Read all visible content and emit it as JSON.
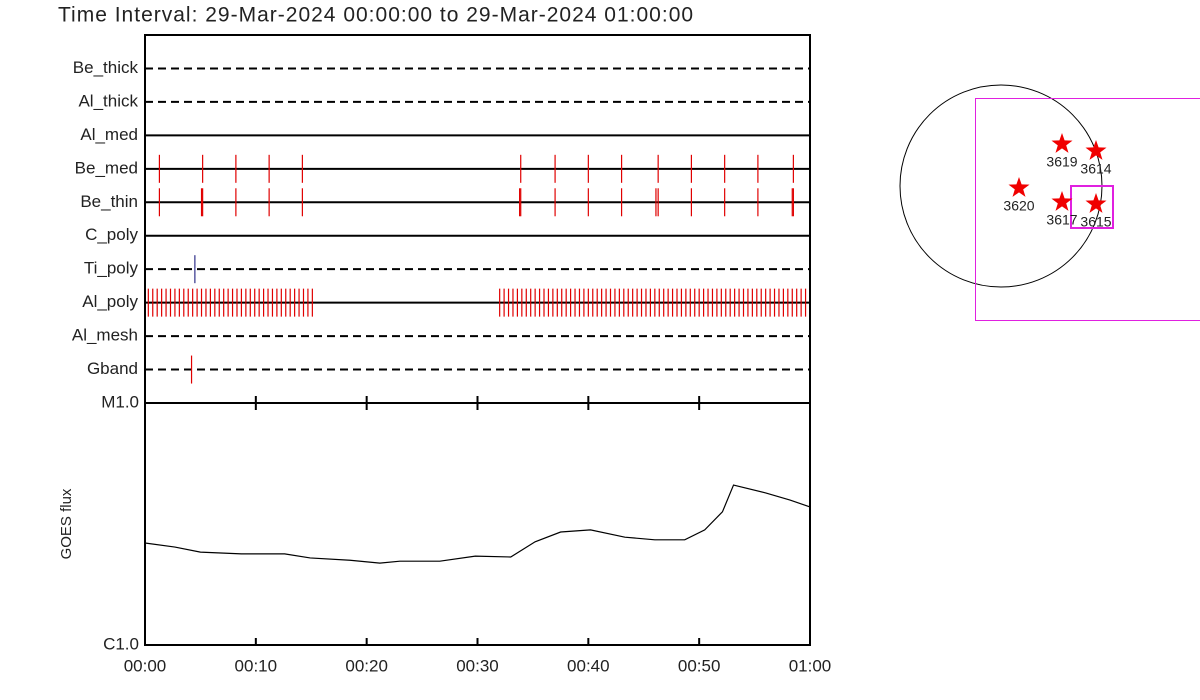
{
  "title": "Time Interval: 29-Mar-2024 00:00:00 to 29-Mar-2024 01:00:00",
  "chart_data": [
    {
      "type": "timeline",
      "xlim": [
        0,
        60
      ],
      "rows": [
        {
          "name": "Be_thick",
          "style": "dashed",
          "color": "#e00000",
          "events": []
        },
        {
          "name": "Al_thick",
          "style": "dashed",
          "color": "#e00000",
          "events": []
        },
        {
          "name": "Al_med",
          "style": "solid",
          "color": "#e00000",
          "events": []
        },
        {
          "name": "Be_med",
          "style": "solid",
          "color": "#e00000",
          "events": [
            1.3,
            5.2,
            8.2,
            11.2,
            14.2,
            33.9,
            37.0,
            40.0,
            43.0,
            46.3,
            49.3,
            52.3,
            55.3,
            58.5
          ]
        },
        {
          "name": "Be_thin",
          "style": "solid",
          "color": "#e00000",
          "events": [
            1.3,
            5.1,
            5.2,
            8.2,
            11.2,
            14.2,
            33.8,
            33.9,
            37.0,
            40.0,
            43.0,
            46.1,
            46.3,
            49.3,
            52.3,
            55.3,
            58.4,
            58.5
          ]
        },
        {
          "name": "C_poly",
          "style": "solid",
          "color": "#e00000",
          "events": []
        },
        {
          "name": "Ti_poly",
          "style": "dashed",
          "color": "#30308a",
          "events": [
            4.5
          ]
        },
        {
          "name": "Al_poly",
          "style": "solid",
          "color": "#e00000",
          "events": [
            0.3,
            0.7,
            1.1,
            1.5,
            1.9,
            2.3,
            2.7,
            3.1,
            3.5,
            3.9,
            4.3,
            4.7,
            5.1,
            5.5,
            5.9,
            6.3,
            6.7,
            7.1,
            7.5,
            7.9,
            8.3,
            8.7,
            9.1,
            9.5,
            9.9,
            10.3,
            10.7,
            11.1,
            11.5,
            11.9,
            12.3,
            12.7,
            13.1,
            13.5,
            13.9,
            14.3,
            14.7,
            15.1,
            32.0,
            32.4,
            32.8,
            33.2,
            33.6,
            34.0,
            34.4,
            34.8,
            35.2,
            35.6,
            36.0,
            36.4,
            36.8,
            37.2,
            37.6,
            38.0,
            38.4,
            38.8,
            39.2,
            39.6,
            40.0,
            40.4,
            40.8,
            41.2,
            41.6,
            42.0,
            42.4,
            42.8,
            43.2,
            43.6,
            44.0,
            44.4,
            44.8,
            45.2,
            45.6,
            46.0,
            46.4,
            46.8,
            47.2,
            47.6,
            48.0,
            48.4,
            48.8,
            49.2,
            49.6,
            50.0,
            50.4,
            50.8,
            51.2,
            51.6,
            52.0,
            52.4,
            52.8,
            53.2,
            53.6,
            54.0,
            54.4,
            54.8,
            55.2,
            55.6,
            56.0,
            56.4,
            56.8,
            57.2,
            57.6,
            58.0,
            58.4,
            58.8,
            59.2,
            59.6
          ]
        },
        {
          "name": "Al_mesh",
          "style": "dashed",
          "color": "#e00000",
          "events": []
        },
        {
          "name": "Gband",
          "style": "dashed",
          "color": "#e00000",
          "events": [
            4.2
          ]
        }
      ]
    },
    {
      "type": "line",
      "ylabel": "GOES flux",
      "log_scale": true,
      "color": "#000000",
      "xlim": [
        0,
        60
      ],
      "xticks": [
        {
          "value": 0,
          "label": "00:00"
        },
        {
          "value": 10,
          "label": "00:10"
        },
        {
          "value": 20,
          "label": "00:20"
        },
        {
          "value": 30,
          "label": "00:30"
        },
        {
          "value": 40,
          "label": "00:40"
        },
        {
          "value": 50,
          "label": "00:50"
        },
        {
          "value": 60,
          "label": "01:00"
        }
      ],
      "ylim": [
        1e-06,
        1e-05
      ],
      "yticks": [
        {
          "value": 1e-05,
          "label": "M1.0"
        },
        {
          "value": 1e-06,
          "label": "C1.0"
        }
      ],
      "x": [
        0,
        2.7,
        5,
        8.7,
        12.6,
        14.9,
        18.5,
        21.2,
        23,
        26.6,
        29.8,
        33,
        35.2,
        37.5,
        40.2,
        43.3,
        46,
        48.7,
        50.5,
        52.1,
        53.1,
        56,
        58.2,
        60
      ],
      "values": [
        2.64e-06,
        2.54e-06,
        2.42e-06,
        2.38e-06,
        2.38e-06,
        2.29e-06,
        2.24e-06,
        2.18e-06,
        2.22e-06,
        2.22e-06,
        2.33e-06,
        2.31e-06,
        2.67e-06,
        2.93e-06,
        2.99e-06,
        2.79e-06,
        2.72e-06,
        2.72e-06,
        2.99e-06,
        3.55e-06,
        4.58e-06,
        4.25e-06,
        3.97e-06,
        3.72e-06
      ]
    }
  ],
  "map": {
    "regions": [
      "3619",
      "3614",
      "3620",
      "3617",
      "3615"
    ]
  }
}
